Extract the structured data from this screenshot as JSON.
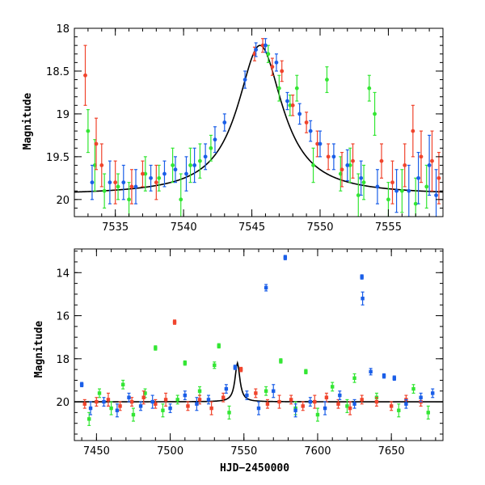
{
  "colors": {
    "green": "#33e633",
    "red": "#f0442c",
    "blue": "#1a5ee8",
    "model": "#000000"
  },
  "chart_data": [
    {
      "type": "scatter",
      "ylabel": "Magnitude",
      "xlabel": "",
      "xlim": [
        7532,
        7559
      ],
      "ylim": [
        20.2,
        18.0
      ],
      "y_inverted": true,
      "xticks": [
        7535,
        7540,
        7545,
        7550,
        7555
      ],
      "yticks": [
        18,
        18.5,
        19,
        19.5,
        20
      ],
      "ytick_labels": [
        "18",
        "18.5",
        "19",
        "19.5",
        "20"
      ],
      "model_curve": {
        "type": "lorentzian-peak",
        "peak_x": 7545.6,
        "peak_mag": 18.2,
        "baseline_mag": 19.95
      },
      "series": [
        {
          "color_key": "green",
          "points": [
            [
              7533.0,
              19.2,
              0.25
            ],
            [
              7533.5,
              19.6,
              0.3
            ],
            [
              7534.2,
              19.9,
              0.2
            ],
            [
              7535.2,
              19.85,
              0.15
            ],
            [
              7536.0,
              20.0,
              0.2
            ],
            [
              7537.2,
              19.7,
              0.2
            ],
            [
              7538.2,
              19.75,
              0.15
            ],
            [
              7539.2,
              19.6,
              0.2
            ],
            [
              7539.8,
              20.0,
              0.3
            ],
            [
              7540.5,
              19.6,
              0.2
            ],
            [
              7541.2,
              19.55,
              0.2
            ],
            [
              7542.0,
              19.4,
              0.15
            ],
            [
              7546.2,
              18.3,
              0.1
            ],
            [
              7547.0,
              18.7,
              0.15
            ],
            [
              7547.8,
              18.9,
              0.12
            ],
            [
              7548.3,
              18.7,
              0.15
            ],
            [
              7549.5,
              19.6,
              0.2
            ],
            [
              7550.5,
              18.6,
              0.15
            ],
            [
              7551.5,
              19.7,
              0.2
            ],
            [
              7552.2,
              19.6,
              0.2
            ],
            [
              7552.8,
              19.95,
              0.25
            ],
            [
              7553.2,
              19.8,
              0.2
            ],
            [
              7553.6,
              18.7,
              0.15
            ],
            [
              7554.0,
              19.0,
              0.25
            ],
            [
              7555.0,
              20.0,
              0.2
            ],
            [
              7556.0,
              19.9,
              0.25
            ],
            [
              7557.0,
              20.05,
              0.3
            ],
            [
              7557.8,
              19.85,
              0.25
            ]
          ]
        },
        {
          "color_key": "red",
          "points": [
            [
              7532.8,
              18.55,
              0.35
            ],
            [
              7533.6,
              19.35,
              0.3
            ],
            [
              7534.0,
              19.6,
              0.25
            ],
            [
              7535.0,
              19.8,
              0.25
            ],
            [
              7536.2,
              19.85,
              0.2
            ],
            [
              7537.0,
              19.7,
              0.15
            ],
            [
              7538.0,
              19.8,
              0.2
            ],
            [
              7545.2,
              18.3,
              0.08
            ],
            [
              7545.8,
              18.2,
              0.08
            ],
            [
              7546.5,
              18.45,
              0.1
            ],
            [
              7547.2,
              18.5,
              0.12
            ],
            [
              7548.0,
              18.9,
              0.12
            ],
            [
              7549.0,
              19.1,
              0.12
            ],
            [
              7549.8,
              19.35,
              0.15
            ],
            [
              7550.6,
              19.5,
              0.15
            ],
            [
              7551.6,
              19.65,
              0.2
            ],
            [
              7552.4,
              19.55,
              0.2
            ],
            [
              7554.5,
              19.55,
              0.2
            ],
            [
              7555.3,
              19.8,
              0.25
            ],
            [
              7556.2,
              19.6,
              0.25
            ],
            [
              7556.8,
              19.2,
              0.3
            ],
            [
              7557.4,
              19.5,
              0.3
            ],
            [
              7558.2,
              19.55,
              0.35
            ],
            [
              7558.7,
              19.75,
              0.3
            ]
          ]
        },
        {
          "color_key": "blue",
          "points": [
            [
              7533.3,
              19.8,
              0.2
            ],
            [
              7534.6,
              19.8,
              0.25
            ],
            [
              7535.6,
              19.8,
              0.2
            ],
            [
              7536.5,
              19.85,
              0.2
            ],
            [
              7537.6,
              19.75,
              0.15
            ],
            [
              7538.6,
              19.7,
              0.15
            ],
            [
              7539.4,
              19.65,
              0.15
            ],
            [
              7540.2,
              19.7,
              0.2
            ],
            [
              7540.8,
              19.6,
              0.2
            ],
            [
              7541.6,
              19.5,
              0.15
            ],
            [
              7542.3,
              19.3,
              0.15
            ],
            [
              7543.0,
              19.1,
              0.1
            ],
            [
              7544.5,
              18.6,
              0.1
            ],
            [
              7545.3,
              18.25,
              0.08
            ],
            [
              7546.0,
              18.2,
              0.08
            ],
            [
              7546.8,
              18.4,
              0.1
            ],
            [
              7547.6,
              18.85,
              0.1
            ],
            [
              7548.5,
              19.0,
              0.12
            ],
            [
              7549.3,
              19.2,
              0.12
            ],
            [
              7550.0,
              19.35,
              0.15
            ],
            [
              7551.0,
              19.5,
              0.15
            ],
            [
              7552.0,
              19.6,
              0.18
            ],
            [
              7553.0,
              19.75,
              0.2
            ],
            [
              7554.2,
              19.85,
              0.2
            ],
            [
              7555.6,
              19.9,
              0.25
            ],
            [
              7556.5,
              19.9,
              0.3
            ],
            [
              7557.2,
              19.75,
              0.3
            ],
            [
              7558.0,
              19.6,
              0.35
            ],
            [
              7558.5,
              19.95,
              0.3
            ]
          ]
        }
      ]
    },
    {
      "type": "scatter",
      "ylabel": "Magnitude",
      "xlabel": "HJD−2450000",
      "xlim": [
        7435,
        7685
      ],
      "ylim": [
        21.8,
        12.9
      ],
      "y_inverted": true,
      "xticks": [
        7450,
        7500,
        7550,
        7600,
        7650
      ],
      "yticks": [
        14,
        16,
        18,
        20
      ],
      "ytick_labels": [
        "14",
        "16",
        "18",
        "20"
      ],
      "model_curve": {
        "type": "lorentzian-peak",
        "peak_x": 7545.6,
        "peak_mag": 18.2,
        "baseline_mag": 20.0
      },
      "series": [
        {
          "color_key": "green",
          "points": [
            [
              7445,
              20.8,
              0.3
            ],
            [
              7452,
              19.6,
              0.2
            ],
            [
              7460,
              20.3,
              0.3
            ],
            [
              7468,
              19.2,
              0.2
            ],
            [
              7475,
              20.6,
              0.3
            ],
            [
              7483,
              19.6,
              0.2
            ],
            [
              7490,
              17.5,
              0.1
            ],
            [
              7495,
              20.4,
              0.3
            ],
            [
              7505,
              19.9,
              0.2
            ],
            [
              7510,
              18.2,
              0.1
            ],
            [
              7520,
              19.5,
              0.2
            ],
            [
              7530,
              18.3,
              0.15
            ],
            [
              7533,
              17.4,
              0.1
            ],
            [
              7540,
              20.5,
              0.3
            ],
            [
              7565,
              19.5,
              0.2
            ],
            [
              7575,
              18.1,
              0.1
            ],
            [
              7585,
              20.3,
              0.3
            ],
            [
              7592,
              18.6,
              0.1
            ],
            [
              7600,
              20.6,
              0.3
            ],
            [
              7610,
              19.3,
              0.2
            ],
            [
              7620,
              20.2,
              0.3
            ],
            [
              7625,
              18.9,
              0.2
            ],
            [
              7640,
              19.8,
              0.2
            ],
            [
              7655,
              20.4,
              0.3
            ],
            [
              7665,
              19.4,
              0.2
            ],
            [
              7675,
              20.5,
              0.3
            ]
          ]
        },
        {
          "color_key": "red",
          "points": [
            [
              7442,
              20.1,
              0.2
            ],
            [
              7450,
              20.0,
              0.2
            ],
            [
              7458,
              19.9,
              0.3
            ],
            [
              7466,
              20.2,
              0.2
            ],
            [
              7474,
              20.0,
              0.2
            ],
            [
              7482,
              19.8,
              0.3
            ],
            [
              7490,
              20.1,
              0.2
            ],
            [
              7497,
              19.9,
              0.3
            ],
            [
              7503,
              16.3,
              0.1
            ],
            [
              7512,
              20.2,
              0.2
            ],
            [
              7520,
              19.9,
              0.2
            ],
            [
              7528,
              20.3,
              0.3
            ],
            [
              7536,
              19.8,
              0.2
            ],
            [
              7548,
              18.5,
              0.1
            ],
            [
              7558,
              19.6,
              0.2
            ],
            [
              7566,
              20.1,
              0.2
            ],
            [
              7574,
              20.0,
              0.3
            ],
            [
              7582,
              19.9,
              0.2
            ],
            [
              7590,
              20.2,
              0.2
            ],
            [
              7598,
              20.0,
              0.3
            ],
            [
              7606,
              19.8,
              0.2
            ],
            [
              7614,
              20.1,
              0.2
            ],
            [
              7622,
              20.3,
              0.3
            ],
            [
              7630,
              19.9,
              0.2
            ],
            [
              7640,
              20.0,
              0.2
            ],
            [
              7650,
              20.2,
              0.2
            ],
            [
              7660,
              19.9,
              0.2
            ],
            [
              7670,
              20.0,
              0.2
            ]
          ]
        },
        {
          "color_key": "blue",
          "points": [
            [
              7440,
              19.2,
              0.1
            ],
            [
              7446,
              20.3,
              0.3
            ],
            [
              7455,
              20.0,
              0.2
            ],
            [
              7464,
              20.4,
              0.3
            ],
            [
              7472,
              19.8,
              0.2
            ],
            [
              7480,
              20.2,
              0.2
            ],
            [
              7488,
              20.0,
              0.3
            ],
            [
              7500,
              20.3,
              0.2
            ],
            [
              7510,
              19.7,
              0.2
            ],
            [
              7518,
              20.1,
              0.3
            ],
            [
              7526,
              19.9,
              0.2
            ],
            [
              7538,
              19.4,
              0.2
            ],
            [
              7544,
              18.4,
              0.1
            ],
            [
              7552,
              19.7,
              0.2
            ],
            [
              7560,
              20.3,
              0.3
            ],
            [
              7565,
              14.7,
              0.15
            ],
            [
              7570,
              19.5,
              0.3
            ],
            [
              7578,
              13.3,
              0.1
            ],
            [
              7585,
              20.4,
              0.3
            ],
            [
              7595,
              20.0,
              0.2
            ],
            [
              7605,
              20.3,
              0.3
            ],
            [
              7615,
              19.7,
              0.2
            ],
            [
              7625,
              20.1,
              0.2
            ],
            [
              7630,
              14.2,
              0.1
            ],
            [
              7630.5,
              15.2,
              0.3
            ],
            [
              7636,
              18.6,
              0.15
            ],
            [
              7645,
              18.8,
              0.1
            ],
            [
              7652,
              18.9,
              0.1
            ],
            [
              7660,
              20.1,
              0.2
            ],
            [
              7670,
              19.8,
              0.2
            ],
            [
              7678,
              19.6,
              0.2
            ]
          ]
        }
      ]
    }
  ]
}
